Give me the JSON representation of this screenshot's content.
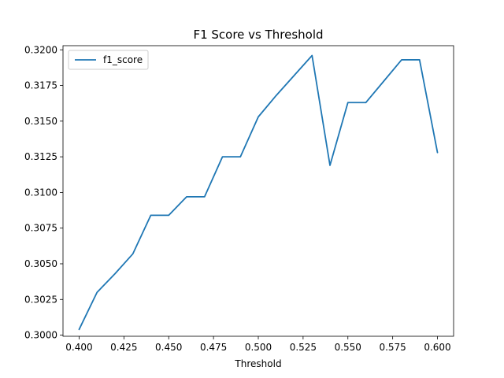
{
  "chart_data": {
    "type": "line",
    "title": "F1 Score vs Threshold",
    "xlabel": "Threshold",
    "ylabel": "",
    "xlim": [
      0.391,
      0.609
    ],
    "ylim": [
      0.29992,
      0.32029
    ],
    "xticks": [
      0.4,
      0.425,
      0.45,
      0.475,
      0.5,
      0.525,
      0.55,
      0.575,
      0.6
    ],
    "xtick_labels": [
      "0.400",
      "0.425",
      "0.450",
      "0.475",
      "0.500",
      "0.525",
      "0.550",
      "0.575",
      "0.600"
    ],
    "yticks": [
      0.3,
      0.3025,
      0.305,
      0.3075,
      0.31,
      0.3125,
      0.315,
      0.3175,
      0.32
    ],
    "ytick_labels": [
      "0.3000",
      "0.3025",
      "0.3050",
      "0.3075",
      "0.3100",
      "0.3125",
      "0.3150",
      "0.3175",
      "0.3200"
    ],
    "grid": false,
    "legend_position": "top-left",
    "series": [
      {
        "name": "f1_score",
        "color": "#1f77b4",
        "x": [
          0.4,
          0.41,
          0.42,
          0.43,
          0.44,
          0.45,
          0.46,
          0.47,
          0.48,
          0.49,
          0.5,
          0.51,
          0.52,
          0.53,
          0.54,
          0.55,
          0.56,
          0.57,
          0.58,
          0.59,
          0.6
        ],
        "y": [
          0.3004,
          0.303,
          0.3043,
          0.3057,
          0.3084,
          0.3084,
          0.3097,
          0.3097,
          0.3125,
          0.3125,
          0.3153,
          0.3168,
          0.3182,
          0.3196,
          0.3119,
          0.3163,
          0.3163,
          0.3178,
          0.3193,
          0.3193,
          0.3128
        ]
      }
    ]
  }
}
